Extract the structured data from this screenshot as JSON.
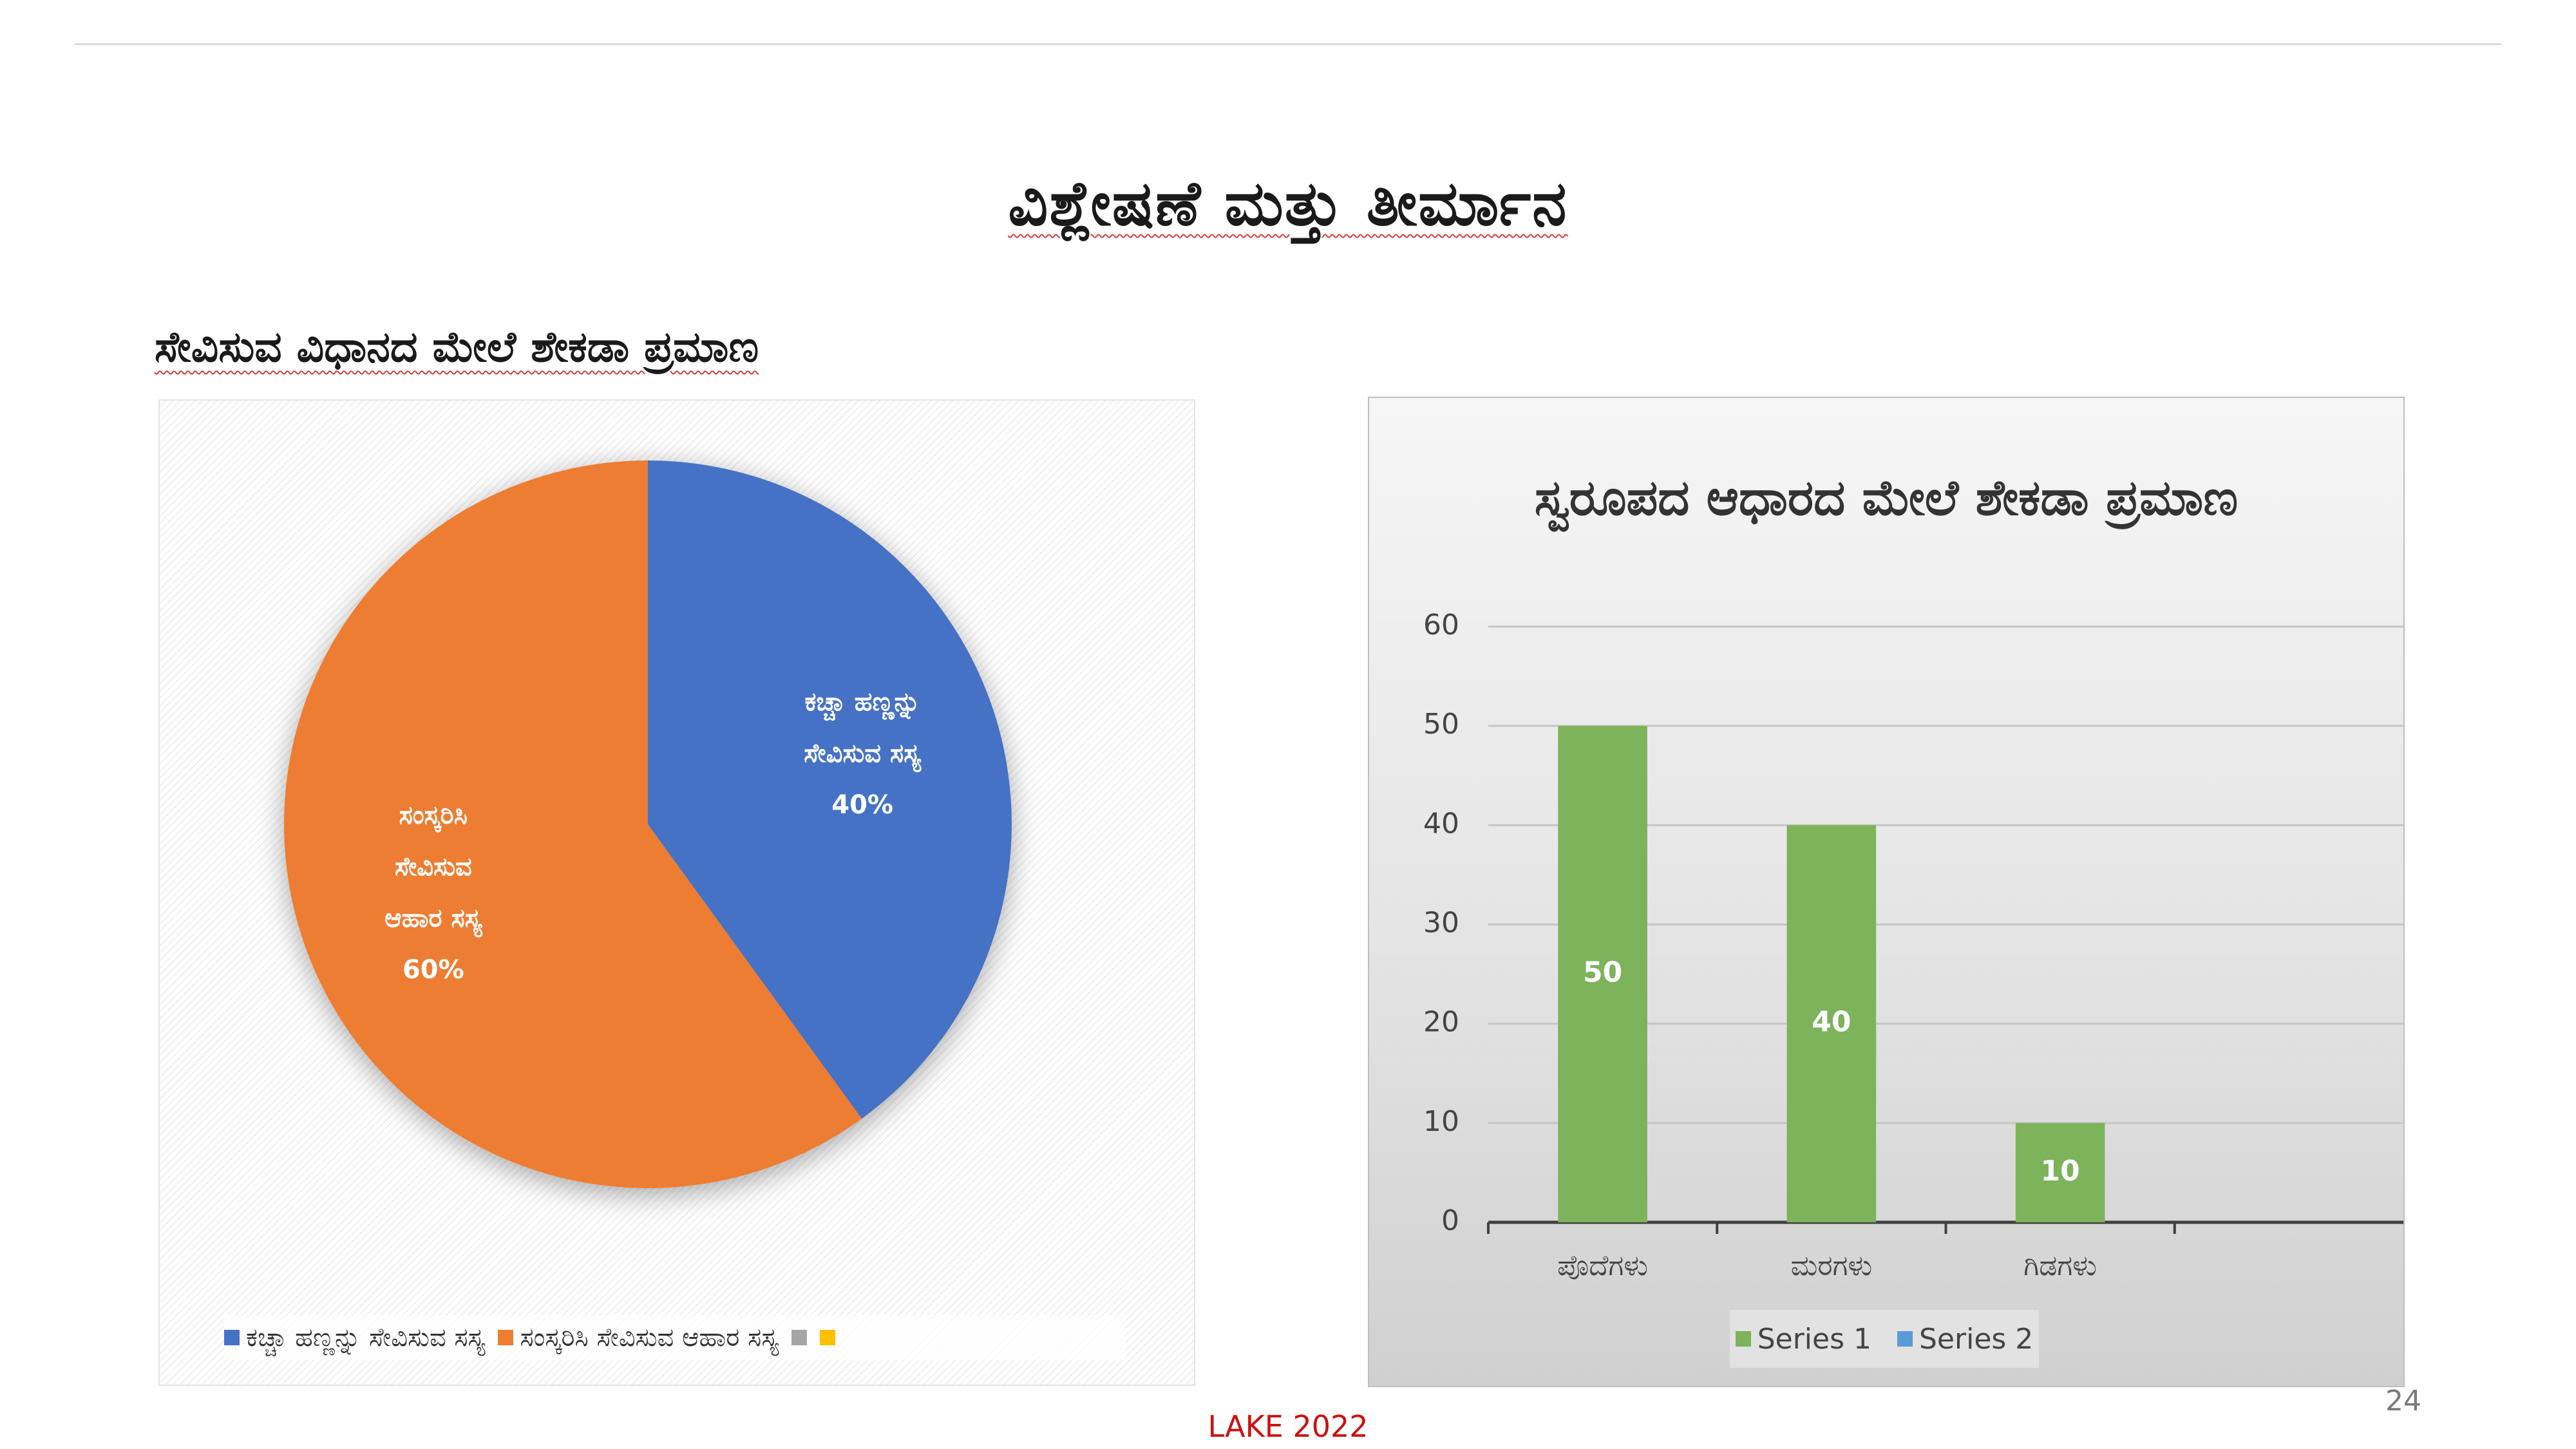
{
  "slide": {
    "title": "ವಿಶ್ಲೇಷಣೆ ಮತ್ತು ತೀರ್ಮಾನ",
    "page_number": "24",
    "footer": "LAKE 2022"
  },
  "chart_data": [
    {
      "type": "pie",
      "title": "ಸೇವಿಸುವ ವಿಧಾನದ ಮೇಲೆ ಶೇಕಡಾ ಪ್ರಮಾಣ",
      "slices": [
        {
          "label_lines": [
            "ಕಚ್ಚಾ ಹಣ್ಣನ್ನು",
            "ಸೇವಿಸುವ ಸಸ್ಯ"
          ],
          "value": 40,
          "value_label": "40%",
          "color": "#4472C4"
        },
        {
          "label_lines": [
            "ಸಂಸ್ಕರಿಸಿ",
            "ಸೇವಿಸುವ",
            "ಆಹಾರ ಸಸ್ಯ"
          ],
          "value": 60,
          "value_label": "60%",
          "color": "#ED7D31"
        }
      ],
      "legend": [
        {
          "label": "ಕಚ್ಚಾ ಹಣ್ಣನ್ನು ಸೇವಿಸುವ ಸಸ್ಯ",
          "color": "#4472C4"
        },
        {
          "label": "ಸಂಸ್ಕರಿಸಿ ಸೇವಿಸುವ ಆಹಾರ ಸಸ್ಯ",
          "color": "#ED7D31"
        },
        {
          "label": "",
          "color": "#A5A5A5"
        },
        {
          "label": "",
          "color": "#FFC000"
        }
      ],
      "legend_position": "bottom"
    },
    {
      "type": "bar",
      "title": "ಸ್ವರೂಪದ ಆಧಾರದ ಮೇಲೆ ಶೇಕಡಾ ಪ್ರಮಾಣ",
      "categories": [
        "ಪೊದೆಗಳು",
        "ಮರಗಳು",
        "ಗಿಡಗಳು",
        ""
      ],
      "series": [
        {
          "name": "Series 1",
          "values": [
            50,
            40,
            10,
            null
          ],
          "color": "#7CB35B"
        },
        {
          "name": "Series 2",
          "values": [
            null,
            null,
            null,
            null
          ],
          "color": "#5B9BD5"
        }
      ],
      "data_labels": [
        "50",
        "40",
        "10"
      ],
      "ylim": [
        0,
        60
      ],
      "yticks": [
        0,
        10,
        20,
        30,
        40,
        50,
        60
      ],
      "grid": true,
      "legend_position": "bottom"
    }
  ]
}
